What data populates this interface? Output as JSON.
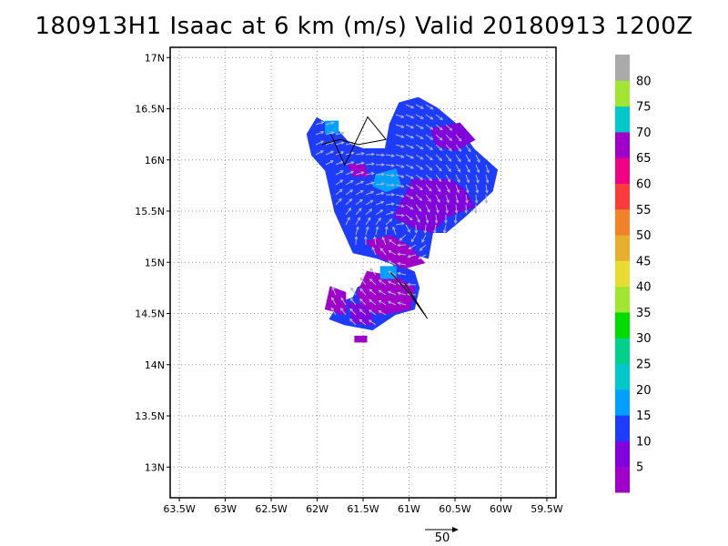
{
  "title": "180913H1 Isaac at 6 km (m/s) Valid 20180913 1200Z",
  "map": {
    "lon_range": [
      -63.6,
      -59.4
    ],
    "lat_range": [
      12.7,
      17.1
    ],
    "lat_ticks": [
      {
        "v": 17.0,
        "label": "17N"
      },
      {
        "v": 16.5,
        "label": "16.5N"
      },
      {
        "v": 16.0,
        "label": "16N"
      },
      {
        "v": 15.5,
        "label": "15.5N"
      },
      {
        "v": 15.0,
        "label": "15N"
      },
      {
        "v": 14.5,
        "label": "14.5N"
      },
      {
        "v": 14.0,
        "label": "14N"
      },
      {
        "v": 13.5,
        "label": "13.5N"
      },
      {
        "v": 13.0,
        "label": "13N"
      }
    ],
    "lon_ticks": [
      {
        "v": -63.5,
        "label": "63.5W"
      },
      {
        "v": -63.0,
        "label": "63W"
      },
      {
        "v": -62.5,
        "label": "62.5W"
      },
      {
        "v": -62.0,
        "label": "62W"
      },
      {
        "v": -61.5,
        "label": "61.5W"
      },
      {
        "v": -61.0,
        "label": "61W"
      },
      {
        "v": -60.5,
        "label": "60.5W"
      },
      {
        "v": -60.0,
        "label": "60W"
      },
      {
        "v": -59.5,
        "label": "59.5W"
      }
    ],
    "colors": {
      "c5": "#a000c8",
      "c10": "#8200dc",
      "c15": "#1e3cff",
      "c20": "#00a0ff",
      "c25": "#00c8c8"
    },
    "wind_regions": [
      {
        "level": "c15",
        "points": [
          [
            -62.0,
            16.4
          ],
          [
            -61.8,
            16.3
          ],
          [
            -61.65,
            16.15
          ],
          [
            -61.5,
            16.1
          ],
          [
            -61.25,
            16.1
          ],
          [
            -61.2,
            16.35
          ],
          [
            -61.1,
            16.55
          ],
          [
            -60.9,
            16.6
          ],
          [
            -60.7,
            16.5
          ],
          [
            -60.5,
            16.35
          ],
          [
            -60.3,
            16.1
          ],
          [
            -60.05,
            15.9
          ],
          [
            -60.1,
            15.7
          ],
          [
            -60.4,
            15.45
          ],
          [
            -60.6,
            15.3
          ],
          [
            -60.75,
            15.3
          ],
          [
            -60.8,
            15.05
          ],
          [
            -61.0,
            15.1
          ],
          [
            -61.1,
            15.05
          ],
          [
            -61.2,
            14.9
          ],
          [
            -61.4,
            14.8
          ],
          [
            -61.55,
            14.75
          ],
          [
            -61.6,
            14.65
          ],
          [
            -61.75,
            14.6
          ],
          [
            -61.85,
            14.45
          ],
          [
            -61.7,
            14.4
          ],
          [
            -61.4,
            14.35
          ],
          [
            -61.15,
            14.5
          ],
          [
            -60.95,
            14.55
          ],
          [
            -60.9,
            14.75
          ],
          [
            -60.95,
            14.9
          ],
          [
            -61.2,
            15.0
          ],
          [
            -61.35,
            15.05
          ],
          [
            -61.6,
            15.1
          ],
          [
            -61.7,
            15.3
          ],
          [
            -61.8,
            15.5
          ],
          [
            -61.85,
            15.7
          ],
          [
            -61.9,
            15.9
          ],
          [
            -62.05,
            16.05
          ],
          [
            -62.1,
            16.25
          ]
        ]
      },
      {
        "level": "c10",
        "points": [
          [
            -60.95,
            15.8
          ],
          [
            -60.55,
            15.8
          ],
          [
            -60.4,
            15.7
          ],
          [
            -60.3,
            15.55
          ],
          [
            -60.6,
            15.45
          ],
          [
            -60.75,
            15.3
          ],
          [
            -60.95,
            15.35
          ],
          [
            -61.15,
            15.45
          ]
        ]
      },
      {
        "level": "c10",
        "points": [
          [
            -60.75,
            16.3
          ],
          [
            -60.45,
            16.35
          ],
          [
            -60.3,
            16.2
          ],
          [
            -60.5,
            16.1
          ],
          [
            -60.7,
            16.15
          ]
        ]
      },
      {
        "level": "c5",
        "points": [
          [
            -61.45,
            15.2
          ],
          [
            -61.2,
            15.25
          ],
          [
            -61.0,
            15.15
          ],
          [
            -60.85,
            15.0
          ],
          [
            -61.05,
            14.95
          ],
          [
            -61.3,
            15.05
          ]
        ]
      },
      {
        "level": "c5",
        "points": [
          [
            -61.45,
            14.9
          ],
          [
            -61.15,
            14.85
          ],
          [
            -60.95,
            14.75
          ],
          [
            -61.0,
            14.55
          ],
          [
            -61.3,
            14.5
          ],
          [
            -61.5,
            14.55
          ],
          [
            -61.55,
            14.7
          ]
        ]
      },
      {
        "level": "c5",
        "points": [
          [
            -61.85,
            14.75
          ],
          [
            -61.7,
            14.7
          ],
          [
            -61.7,
            14.5
          ],
          [
            -61.9,
            14.55
          ]
        ]
      },
      {
        "level": "c10",
        "points": [
          [
            -61.65,
            14.6
          ],
          [
            -61.45,
            14.55
          ],
          [
            -61.4,
            14.4
          ],
          [
            -61.6,
            14.42
          ]
        ]
      },
      {
        "level": "c5",
        "points": [
          [
            -61.65,
            15.95
          ],
          [
            -61.5,
            15.95
          ],
          [
            -61.45,
            15.85
          ],
          [
            -61.6,
            15.85
          ]
        ]
      },
      {
        "level": "c5",
        "points": [
          [
            -61.58,
            14.27
          ],
          [
            -61.47,
            14.27
          ],
          [
            -61.47,
            14.23
          ],
          [
            -61.58,
            14.23
          ]
        ]
      },
      {
        "level": "c20",
        "points": [
          [
            -61.35,
            15.85
          ],
          [
            -61.15,
            15.9
          ],
          [
            -61.1,
            15.75
          ],
          [
            -61.25,
            15.7
          ],
          [
            -61.38,
            15.75
          ]
        ]
      },
      {
        "level": "c20",
        "points": [
          [
            -61.3,
            14.95
          ],
          [
            -61.15,
            14.95
          ],
          [
            -61.15,
            14.85
          ],
          [
            -61.3,
            14.85
          ]
        ]
      },
      {
        "level": "c20",
        "points": [
          [
            -61.9,
            16.37
          ],
          [
            -61.78,
            16.37
          ],
          [
            -61.78,
            16.27
          ],
          [
            -61.9,
            16.27
          ]
        ]
      }
    ],
    "track_lines": [
      [
        [
          -61.85,
          16.25
        ],
        [
          -61.7,
          15.95
        ],
        [
          -61.45,
          16.42
        ],
        [
          -61.25,
          16.2
        ],
        [
          -61.55,
          16.15
        ],
        [
          -61.75,
          16.2
        ],
        [
          -61.95,
          16.15
        ]
      ],
      [
        [
          -61.05,
          14.8
        ],
        [
          -60.8,
          14.45
        ],
        [
          -61.0,
          14.7
        ],
        [
          -61.2,
          14.9
        ]
      ]
    ]
  },
  "colorbar": {
    "items": [
      {
        "color": "#a000c8",
        "label": "5"
      },
      {
        "color": "#8200dc",
        "label": "10"
      },
      {
        "color": "#1e3cff",
        "label": "15"
      },
      {
        "color": "#00a0ff",
        "label": "20"
      },
      {
        "color": "#00c8c8",
        "label": "25"
      },
      {
        "color": "#00d28c",
        "label": "30"
      },
      {
        "color": "#00dc00",
        "label": "35"
      },
      {
        "color": "#a0e632",
        "label": "40"
      },
      {
        "color": "#e6dc32",
        "label": "45"
      },
      {
        "color": "#e6af2d",
        "label": "50"
      },
      {
        "color": "#f08228",
        "label": "55"
      },
      {
        "color": "#fa3c3c",
        "label": "60"
      },
      {
        "color": "#f00082",
        "label": "65"
      },
      {
        "color": "#a000c8",
        "label": "70"
      },
      {
        "color": "#00c8c8",
        "label": "75"
      },
      {
        "color": "#a0e632",
        "label": "80"
      },
      {
        "color": "#aaaaaa",
        "label": ""
      }
    ]
  },
  "reference_vector": {
    "label": "50"
  }
}
